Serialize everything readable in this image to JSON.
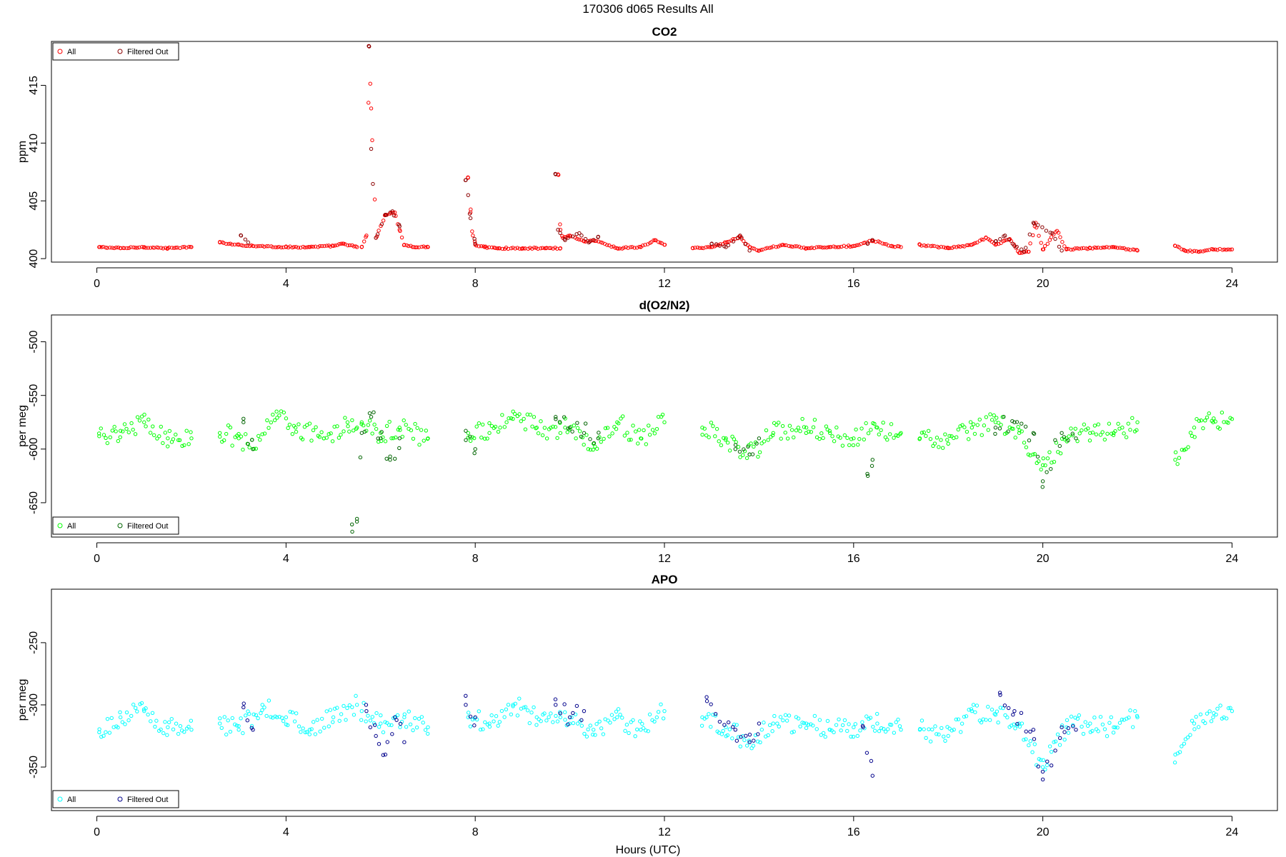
{
  "figure": {
    "suptitle": "170306   d065   Results All",
    "xlabel": "Hours (UTC)"
  },
  "chart_data": [
    {
      "type": "scatter",
      "title": "CO2",
      "ylabel": "ppm",
      "xlabel": "",
      "xlim": [
        -0.96,
        24.96
      ],
      "ylim": [
        399.7,
        418.8
      ],
      "xticks": [
        0,
        4,
        8,
        12,
        16,
        20,
        24
      ],
      "yticks": [
        400,
        405,
        410,
        415
      ],
      "legend_position": "top-left",
      "series": [
        {
          "name": "All",
          "color": "#ff0000",
          "segments": [
            {
              "x": [
                0.05,
                0.5,
                1.0,
                1.5,
                2.0
              ],
              "y": [
                401.0,
                400.9,
                401.0,
                400.9,
                401.0
              ]
            },
            {
              "x": [
                2.6,
                3.0,
                3.3,
                4.0,
                4.5,
                5.0,
                5.2,
                5.5
              ],
              "y": [
                401.4,
                401.2,
                401.1,
                401.0,
                401.0,
                401.1,
                401.3,
                401.0
              ]
            },
            {
              "x": [
                5.6,
                5.7,
                5.75,
                5.8,
                5.9,
                6.1,
                6.3,
                6.4,
                6.5,
                6.7,
                7.0
              ],
              "y": [
                401.0,
                402.0,
                418.4,
                413.0,
                401.8,
                403.8,
                404.0,
                402.5,
                401.2,
                401.0,
                401.0
              ]
            },
            {
              "x": [
                7.85,
                7.9,
                7.95,
                8.0,
                8.2,
                8.5,
                9.0,
                9.5,
                9.8
              ],
              "y": [
                407.0,
                404.0,
                402.0,
                401.2,
                401.0,
                400.9,
                400.9,
                400.9,
                400.9
              ]
            },
            {
              "x": [
                9.75,
                9.8,
                9.85,
                10.0,
                10.3,
                10.5,
                11.0,
                11.5,
                11.8,
                12.0
              ],
              "y": [
                407.3,
                402.5,
                401.8,
                402.0,
                401.5,
                401.6,
                400.9,
                401.0,
                401.6,
                401.2
              ]
            },
            {
              "x": [
                12.6,
                13.0,
                13.3,
                13.6,
                13.8,
                14.0,
                14.5,
                15.0,
                15.5,
                16.0,
                16.4,
                16.8,
                17.0
              ],
              "y": [
                400.9,
                401.0,
                401.4,
                401.9,
                401.0,
                400.7,
                401.2,
                400.9,
                401.0,
                401.1,
                401.6,
                401.1,
                401.0
              ]
            },
            {
              "x": [
                17.4,
                18.0,
                18.5,
                18.8,
                19.0,
                19.3,
                19.5,
                19.7,
                19.85,
                20.0,
                20.3,
                20.5,
                21.0,
                21.5,
                22.0
              ],
              "y": [
                401.2,
                400.9,
                401.2,
                401.8,
                401.2,
                401.7,
                400.5,
                400.6,
                403.1,
                400.8,
                402.4,
                400.8,
                400.9,
                401.0,
                400.7
              ]
            },
            {
              "x": [
                22.8,
                23.0,
                23.3,
                23.6,
                24.0
              ],
              "y": [
                401.1,
                400.7,
                400.6,
                400.8,
                400.8
              ]
            }
          ]
        },
        {
          "name": "Filtered Out",
          "color": "#8b0000",
          "segments": [
            {
              "x": [
                3.05,
                3.2
              ],
              "y": [
                402.0,
                401.4
              ]
            },
            {
              "x": [
                5.75,
                5.8,
                5.9,
                6.1,
                6.25,
                6.4
              ],
              "y": [
                418.4,
                409.5,
                401.8,
                403.8,
                404.1,
                402.8
              ]
            },
            {
              "x": [
                7.8,
                7.85,
                7.9,
                8.0
              ],
              "y": [
                406.8,
                405.5,
                403.5,
                401.3
              ]
            },
            {
              "x": [
                9.7,
                9.75,
                9.9,
                10.2,
                10.4,
                10.6
              ],
              "y": [
                407.3,
                402.5,
                401.6,
                402.2,
                401.4,
                401.9
              ]
            },
            {
              "x": [
                13.0,
                13.3,
                13.6,
                13.8
              ],
              "y": [
                401.3,
                401.0,
                402.0,
                400.7
              ]
            },
            {
              "x": [
                16.3,
                16.4
              ],
              "y": [
                401.3,
                401.6
              ]
            },
            {
              "x": [
                19.0,
                19.2,
                19.4,
                19.6,
                19.8,
                20.2,
                20.4
              ],
              "y": [
                401.5,
                402.0,
                401.1,
                400.6,
                403.1,
                402.2,
                400.7
              ]
            }
          ]
        }
      ]
    },
    {
      "type": "scatter",
      "title": "d(O2/N2)",
      "ylabel": "per meg",
      "xlabel": "",
      "xlim": [
        -0.96,
        24.96
      ],
      "ylim": [
        -682,
        -475
      ],
      "xticks": [
        0,
        4,
        8,
        12,
        16,
        20,
        24
      ],
      "yticks": [
        -650,
        -600,
        -550,
        -500
      ],
      "legend_position": "bottom-left",
      "series": [
        {
          "name": "All",
          "color": "#00ff00",
          "segments": [
            {
              "x": [
                0.05,
                0.5,
                1.0,
                1.5,
                2.0
              ],
              "y": [
                -588,
                -583,
                -575,
                -590,
                -590
              ]
            },
            {
              "x": [
                2.6,
                3.0,
                3.3,
                3.8,
                4.2,
                4.8,
                5.3,
                5.5
              ],
              "y": [
                -585,
                -590,
                -600,
                -565,
                -580,
                -590,
                -575,
                -580
              ]
            },
            {
              "x": [
                5.6,
                6.0,
                6.4,
                7.0
              ],
              "y": [
                -575,
                -585,
                -580,
                -590
              ]
            },
            {
              "x": [
                7.85,
                8.3,
                8.8,
                9.3,
                9.8
              ],
              "y": [
                -585,
                -585,
                -565,
                -580,
                -585
              ]
            },
            {
              "x": [
                9.9,
                10.5,
                11.0,
                11.5,
                12.0
              ],
              "y": [
                -580,
                -595,
                -575,
                -590,
                -575
              ]
            },
            {
              "x": [
                12.8,
                13.3,
                13.8,
                14.3,
                15.0,
                15.5,
                16.0,
                16.5,
                17.0
              ],
              "y": [
                -580,
                -590,
                -605,
                -585,
                -580,
                -585,
                -590,
                -580,
                -585
              ]
            },
            {
              "x": [
                17.4,
                18.0,
                18.5,
                19.0,
                19.5,
                20.0,
                20.5,
                21.0,
                21.5,
                22.0
              ],
              "y": [
                -590,
                -595,
                -580,
                -575,
                -585,
                -615,
                -590,
                -585,
                -585,
                -575
              ]
            },
            {
              "x": [
                22.8,
                23.2,
                23.6,
                24.0
              ],
              "y": [
                -610,
                -580,
                -575,
                -572
              ]
            }
          ]
        },
        {
          "name": "Filtered Out",
          "color": "#006400",
          "segments": [
            {
              "x": [
                3.1,
                3.3
              ],
              "y": [
                -575,
                -600
              ]
            },
            {
              "x": [
                5.4,
                5.5,
                5.6,
                5.8,
                6.0,
                6.2,
                6.4
              ],
              "y": [
                -677,
                -665,
                -585,
                -570,
                -590,
                -610,
                -590
              ]
            },
            {
              "x": [
                7.8,
                8.0
              ],
              "y": [
                -583,
                -600
              ]
            },
            {
              "x": [
                9.7,
                10.0,
                10.3,
                10.6
              ],
              "y": [
                -570,
                -580,
                -585,
                -590
              ]
            },
            {
              "x": [
                13.5,
                13.8,
                14.0
              ],
              "y": [
                -600,
                -605,
                -590
              ]
            },
            {
              "x": [
                16.3,
                16.4
              ],
              "y": [
                -625,
                -610
              ]
            },
            {
              "x": [
                19.0,
                19.4,
                19.8,
                20.0,
                20.4,
                20.7
              ],
              "y": [
                -580,
                -575,
                -585,
                -630,
                -585,
                -590
              ]
            }
          ]
        }
      ]
    },
    {
      "type": "scatter",
      "title": "APO",
      "ylabel": "per meg",
      "xlabel": "",
      "xlim": [
        -0.96,
        24.96
      ],
      "ylim": [
        -385,
        -207
      ],
      "xticks": [
        0,
        4,
        8,
        12,
        16,
        20,
        24
      ],
      "yticks": [
        -350,
        -300,
        -250
      ],
      "legend_position": "bottom-left",
      "series": [
        {
          "name": "All",
          "color": "#00ffff",
          "segments": [
            {
              "x": [
                0.05,
                0.5,
                1.0,
                1.5,
                2.0
              ],
              "y": [
                -322,
                -310,
                -305,
                -318,
                -320
              ]
            },
            {
              "x": [
                2.6,
                3.0,
                3.5,
                4.0,
                4.5,
                5.0,
                5.5
              ],
              "y": [
                -315,
                -320,
                -300,
                -310,
                -320,
                -310,
                -300
              ]
            },
            {
              "x": [
                5.6,
                6.0,
                6.5,
                7.0
              ],
              "y": [
                -305,
                -315,
                -310,
                -318
              ]
            },
            {
              "x": [
                7.85,
                8.3,
                8.8,
                9.3,
                9.8
              ],
              "y": [
                -310,
                -315,
                -300,
                -310,
                -310
              ]
            },
            {
              "x": [
                9.9,
                10.5,
                11.0,
                11.5,
                12.0
              ],
              "y": [
                -312,
                -320,
                -310,
                -320,
                -305
              ]
            },
            {
              "x": [
                12.8,
                13.3,
                13.8,
                14.3,
                15.0,
                15.5,
                16.0,
                16.5,
                17.0
              ],
              "y": [
                -310,
                -318,
                -330,
                -315,
                -315,
                -320,
                -318,
                -315,
                -320
              ]
            },
            {
              "x": [
                17.4,
                18.0,
                18.5,
                19.0,
                19.5,
                20.0,
                20.5,
                21.0,
                21.5,
                22.0
              ],
              "y": [
                -320,
                -325,
                -305,
                -308,
                -315,
                -350,
                -318,
                -315,
                -318,
                -310
              ]
            },
            {
              "x": [
                22.8,
                23.2,
                23.6,
                24.0
              ],
              "y": [
                -340,
                -315,
                -310,
                -305
              ]
            }
          ]
        },
        {
          "name": "Filtered Out",
          "color": "#00008b",
          "segments": [
            {
              "x": [
                3.1,
                3.3
              ],
              "y": [
                -302,
                -320
              ]
            },
            {
              "x": [
                5.7,
                5.9,
                6.1,
                6.3,
                6.5
              ],
              "y": [
                -305,
                -325,
                -340,
                -310,
                -330
              ]
            },
            {
              "x": [
                7.8,
                8.0
              ],
              "y": [
                -300,
                -310
              ]
            },
            {
              "x": [
                9.7,
                10.0,
                10.3
              ],
              "y": [
                -300,
                -310,
                -305
              ]
            },
            {
              "x": [
                12.9,
                13.5,
                13.8,
                14.0
              ],
              "y": [
                -297,
                -320,
                -330,
                -315
              ]
            },
            {
              "x": [
                16.2,
                16.4
              ],
              "y": [
                -318,
                -357
              ]
            },
            {
              "x": [
                19.1,
                19.4,
                19.8,
                20.0,
                20.4,
                20.7
              ],
              "y": [
                -292,
                -305,
                -320,
                -360,
                -318,
                -320
              ]
            }
          ]
        }
      ]
    }
  ]
}
